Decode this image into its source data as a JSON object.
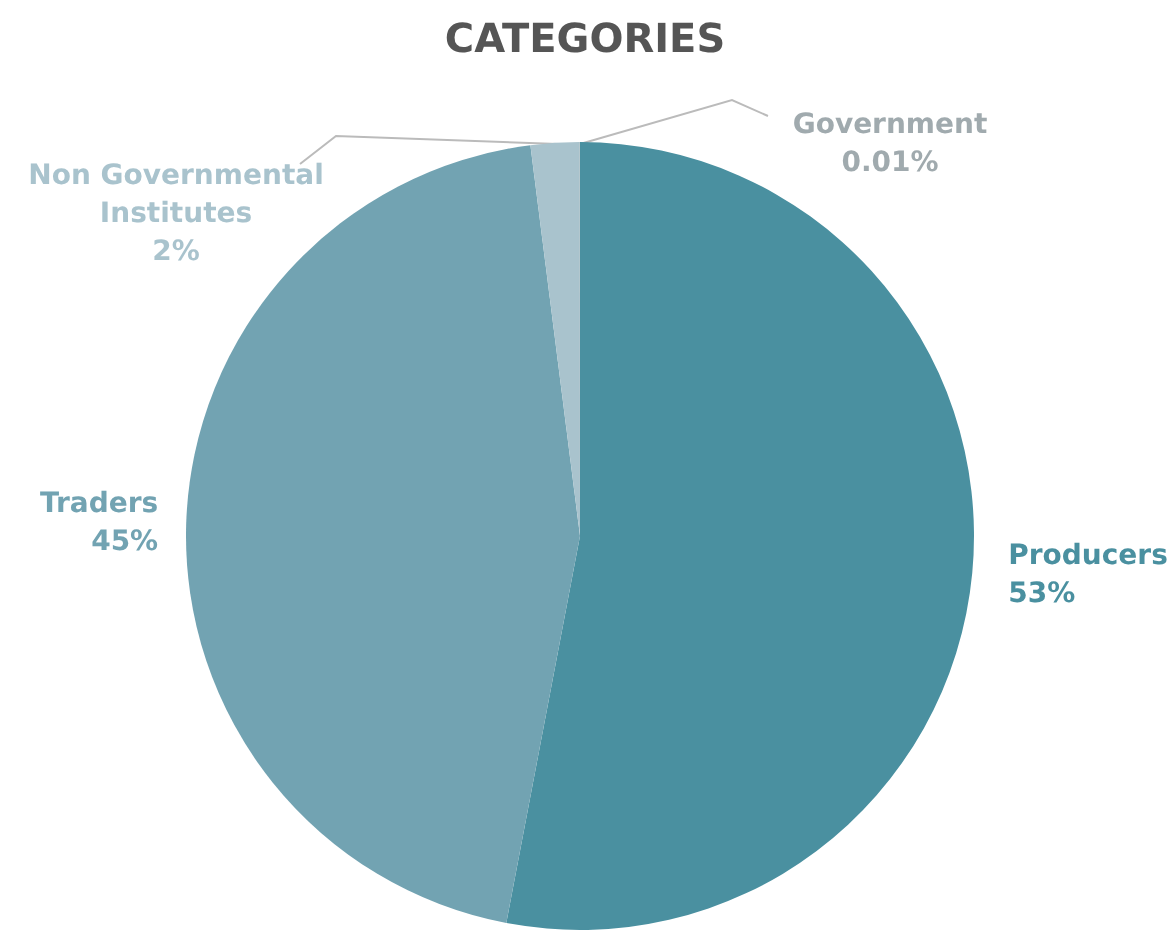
{
  "chart_data": {
    "type": "pie",
    "title": "CATEGORIES",
    "categories": [
      "Producers",
      "Traders",
      "Non Governmental Institutes",
      "Government"
    ],
    "values": [
      53,
      45,
      2,
      0.01
    ],
    "colors": [
      "#4a90a0",
      "#72a3b2",
      "#a9c3cd",
      "#a0aaae"
    ],
    "value_labels": [
      "53%",
      "45%",
      "2%",
      "0.01%"
    ],
    "legend": false
  }
}
